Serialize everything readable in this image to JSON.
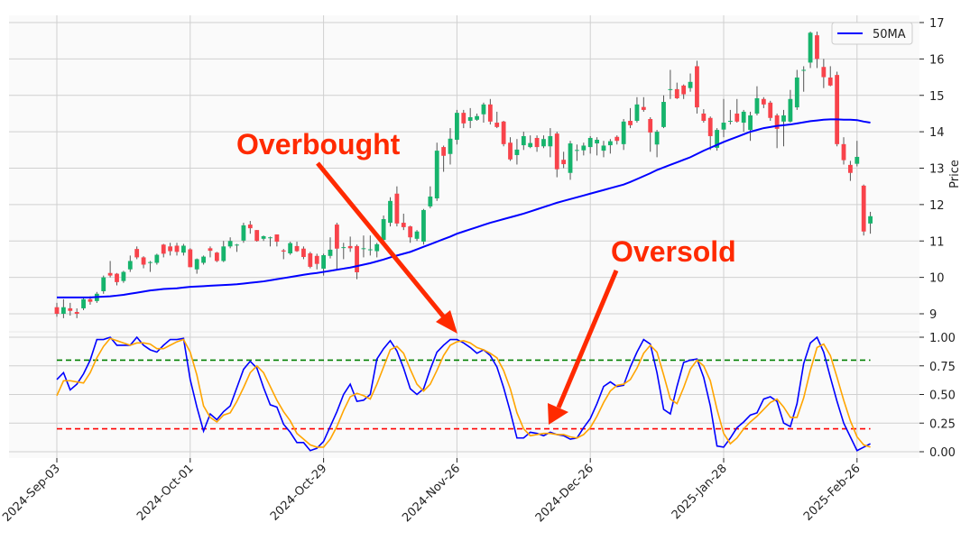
{
  "chart_data": [
    {
      "type": "candlestick",
      "panel": "price",
      "ylabel": "Price",
      "ylim": [
        8.5,
        17.2
      ],
      "yticks": [
        "9",
        "10",
        "11",
        "12",
        "13",
        "14",
        "15",
        "16",
        "17"
      ],
      "ytick_values": [
        9,
        10,
        11,
        12,
        13,
        14,
        15,
        16,
        17
      ],
      "grid": true,
      "legend": {
        "placement": "top-right",
        "entries": [
          {
            "name": "50MA",
            "color": "#0000ff"
          }
        ]
      },
      "colors": {
        "up": "#16b46c",
        "down": "#f8434b",
        "wick": "#555555",
        "ma": "#0000ff",
        "background": "#fafafa",
        "grid": "#d0d0d0"
      },
      "x_ticks": [
        {
          "label": "2024-Sep-03",
          "index": 0
        },
        {
          "label": "2024-Oct-01",
          "index": 20
        },
        {
          "label": "2024-Oct-29",
          "index": 40
        },
        {
          "label": "2024-Nov-26",
          "index": 60
        },
        {
          "label": "2024-Dec-26",
          "index": 80
        },
        {
          "label": "2025-Jan-28",
          "index": 100
        },
        {
          "label": "2025-Feb-26",
          "index": 120
        }
      ],
      "ohlc": [
        [
          9.18,
          9.3,
          8.92,
          9.0
        ],
        [
          9.0,
          9.4,
          8.88,
          9.18
        ],
        [
          9.15,
          9.3,
          8.95,
          9.08
        ],
        [
          9.05,
          9.15,
          8.88,
          9.0
        ],
        [
          9.15,
          9.45,
          9.1,
          9.4
        ],
        [
          9.4,
          9.48,
          9.25,
          9.33
        ],
        [
          9.35,
          9.6,
          9.3,
          9.55
        ],
        [
          9.62,
          10.05,
          9.55,
          10.0
        ],
        [
          10.12,
          10.45,
          10.0,
          10.05
        ],
        [
          10.1,
          10.12,
          9.78,
          9.87
        ],
        [
          9.9,
          10.18,
          9.85,
          10.15
        ],
        [
          10.22,
          10.6,
          10.15,
          10.45
        ],
        [
          10.78,
          10.85,
          10.5,
          10.55
        ],
        [
          10.55,
          10.58,
          10.25,
          10.35
        ],
        [
          10.42,
          10.45,
          10.15,
          10.42
        ],
        [
          10.4,
          10.65,
          10.35,
          10.62
        ],
        [
          10.9,
          10.92,
          10.55,
          10.65
        ],
        [
          10.85,
          10.95,
          10.6,
          10.72
        ],
        [
          10.87,
          10.95,
          10.6,
          10.7
        ],
        [
          10.68,
          10.92,
          10.6,
          10.87
        ],
        [
          10.77,
          10.8,
          10.28,
          10.28
        ],
        [
          10.22,
          10.52,
          10.1,
          10.5
        ],
        [
          10.4,
          10.6,
          10.35,
          10.57
        ],
        [
          10.8,
          10.85,
          10.55,
          10.73
        ],
        [
          10.68,
          10.7,
          10.42,
          10.45
        ],
        [
          10.45,
          11.0,
          10.42,
          10.85
        ],
        [
          10.85,
          11.1,
          10.8,
          11.0
        ],
        [
          10.9,
          10.92,
          10.7,
          10.9
        ],
        [
          11.01,
          11.5,
          10.95,
          11.43
        ],
        [
          11.45,
          11.55,
          11.2,
          11.35
        ],
        [
          11.3,
          11.3,
          10.98,
          11.0
        ],
        [
          11.06,
          11.15,
          11.0,
          11.13
        ],
        [
          11.1,
          11.12,
          10.85,
          11.1
        ],
        [
          11.18,
          11.18,
          10.85,
          10.98
        ],
        [
          10.74,
          10.78,
          10.5,
          10.71
        ],
        [
          10.66,
          10.98,
          10.62,
          10.94
        ],
        [
          10.86,
          10.98,
          10.7,
          10.72
        ],
        [
          10.79,
          10.85,
          10.5,
          10.56
        ],
        [
          10.66,
          10.7,
          10.25,
          10.29
        ],
        [
          10.59,
          10.65,
          10.22,
          10.37
        ],
        [
          10.24,
          10.65,
          10.05,
          10.61
        ],
        [
          10.59,
          11.1,
          10.52,
          10.76
        ],
        [
          11.45,
          11.5,
          10.2,
          10.79
        ],
        [
          10.83,
          10.95,
          10.5,
          10.83
        ],
        [
          10.86,
          11.12,
          10.7,
          10.8
        ],
        [
          10.86,
          10.9,
          9.95,
          10.14
        ],
        [
          10.8,
          11.15,
          10.55,
          10.8
        ],
        [
          10.77,
          11.15,
          10.6,
          10.77
        ],
        [
          10.72,
          10.95,
          10.55,
          10.91
        ],
        [
          11.03,
          11.7,
          11.0,
          11.6
        ],
        [
          11.5,
          12.2,
          11.4,
          12.1
        ],
        [
          12.3,
          12.5,
          11.4,
          11.48
        ],
        [
          11.5,
          11.75,
          11.3,
          11.38
        ],
        [
          11.4,
          11.42,
          10.95,
          11.1
        ],
        [
          11.06,
          11.3,
          11.0,
          11.26
        ],
        [
          10.98,
          11.88,
          10.9,
          11.85
        ],
        [
          11.95,
          12.5,
          11.9,
          12.22
        ],
        [
          12.17,
          13.7,
          12.1,
          13.48
        ],
        [
          13.58,
          13.62,
          12.9,
          13.34
        ],
        [
          13.39,
          14.1,
          13.1,
          13.81
        ],
        [
          13.78,
          14.6,
          13.65,
          14.52
        ],
        [
          14.52,
          14.6,
          14.1,
          14.23
        ],
        [
          14.3,
          14.65,
          14.1,
          14.4
        ],
        [
          14.33,
          14.5,
          14.3,
          14.43
        ],
        [
          14.48,
          14.8,
          14.25,
          14.75
        ],
        [
          14.75,
          14.9,
          14.2,
          14.28
        ],
        [
          14.25,
          14.55,
          14.1,
          14.13
        ],
        [
          14.28,
          14.3,
          13.6,
          13.66
        ],
        [
          13.7,
          13.85,
          13.2,
          13.24
        ],
        [
          13.36,
          13.8,
          13.1,
          13.51
        ],
        [
          13.63,
          14.0,
          13.5,
          13.88
        ],
        [
          13.58,
          13.9,
          13.55,
          13.69
        ],
        [
          13.83,
          13.9,
          13.45,
          13.58
        ],
        [
          13.6,
          13.9,
          13.55,
          13.8
        ],
        [
          13.6,
          14.1,
          13.3,
          13.88
        ],
        [
          13.95,
          14.0,
          12.75,
          12.97
        ],
        [
          13.23,
          13.45,
          13.0,
          13.11
        ],
        [
          12.87,
          13.75,
          12.68,
          13.68
        ],
        [
          13.5,
          13.65,
          13.2,
          13.5
        ],
        [
          13.49,
          13.7,
          13.35,
          13.62
        ],
        [
          13.58,
          13.88,
          13.4,
          13.83
        ],
        [
          13.68,
          13.85,
          13.35,
          13.78
        ],
        [
          13.48,
          13.75,
          13.3,
          13.62
        ],
        [
          13.63,
          13.8,
          13.4,
          13.74
        ],
        [
          13.86,
          13.9,
          13.65,
          13.75
        ],
        [
          13.66,
          14.35,
          13.5,
          14.28
        ],
        [
          14.3,
          14.65,
          14.1,
          14.18
        ],
        [
          14.3,
          14.95,
          14.25,
          14.75
        ],
        [
          14.68,
          14.95,
          14.55,
          14.6
        ],
        [
          14.35,
          14.4,
          13.45,
          13.98
        ],
        [
          13.65,
          14.05,
          13.3,
          14.0
        ],
        [
          14.13,
          15.0,
          14.1,
          14.82
        ],
        [
          15.17,
          15.7,
          14.9,
          15.17
        ],
        [
          15.17,
          15.35,
          14.9,
          14.92
        ],
        [
          15.27,
          15.3,
          14.9,
          15.03
        ],
        [
          15.2,
          15.6,
          15.1,
          15.37
        ],
        [
          15.8,
          15.95,
          14.5,
          14.67
        ],
        [
          14.5,
          14.62,
          14.25,
          14.3
        ],
        [
          14.38,
          14.42,
          13.5,
          13.88
        ],
        [
          13.56,
          14.1,
          13.48,
          14.05
        ],
        [
          14.06,
          14.9,
          13.85,
          14.25
        ],
        [
          14.3,
          14.6,
          14.2,
          14.3
        ],
        [
          14.5,
          14.9,
          14.25,
          14.28
        ],
        [
          14.25,
          14.6,
          14.0,
          14.55
        ],
        [
          14.05,
          14.55,
          13.75,
          14.45
        ],
        [
          14.5,
          15.25,
          14.45,
          14.92
        ],
        [
          14.9,
          14.95,
          14.65,
          14.75
        ],
        [
          14.8,
          14.85,
          14.3,
          14.38
        ],
        [
          14.45,
          14.5,
          13.55,
          14.08
        ],
        [
          14.28,
          14.6,
          13.6,
          14.45
        ],
        [
          14.28,
          15.15,
          14.25,
          14.9
        ],
        [
          14.67,
          15.7,
          14.6,
          15.49
        ],
        [
          15.7,
          15.8,
          15.1,
          15.7
        ],
        [
          15.9,
          16.75,
          15.75,
          16.72
        ],
        [
          16.65,
          16.75,
          15.75,
          16.0
        ],
        [
          15.78,
          16.0,
          15.2,
          15.5
        ],
        [
          15.49,
          15.8,
          15.25,
          15.27
        ],
        [
          15.56,
          15.65,
          13.6,
          13.66
        ],
        [
          13.66,
          13.85,
          13.1,
          13.22
        ],
        [
          13.09,
          13.2,
          12.65,
          12.87
        ],
        [
          13.12,
          13.75,
          13.05,
          13.31
        ],
        [
          12.52,
          12.55,
          11.15,
          11.26
        ],
        [
          11.48,
          11.8,
          11.2,
          11.68
        ]
      ],
      "ma50": [
        9.45,
        9.45,
        9.45,
        9.45,
        9.45,
        9.45,
        9.46,
        9.47,
        9.48,
        9.5,
        9.52,
        9.55,
        9.58,
        9.61,
        9.64,
        9.66,
        9.68,
        9.69,
        9.7,
        9.72,
        9.74,
        9.75,
        9.76,
        9.77,
        9.78,
        9.79,
        9.8,
        9.81,
        9.83,
        9.85,
        9.87,
        9.89,
        9.92,
        9.95,
        9.98,
        10.01,
        10.04,
        10.07,
        10.1,
        10.12,
        10.15,
        10.18,
        10.21,
        10.24,
        10.27,
        10.31,
        10.35,
        10.39,
        10.44,
        10.49,
        10.55,
        10.6,
        10.65,
        10.7,
        10.77,
        10.84,
        10.91,
        10.98,
        11.05,
        11.12,
        11.2,
        11.26,
        11.32,
        11.38,
        11.44,
        11.5,
        11.55,
        11.6,
        11.65,
        11.7,
        11.75,
        11.81,
        11.87,
        11.93,
        11.99,
        12.05,
        12.1,
        12.15,
        12.2,
        12.25,
        12.3,
        12.35,
        12.4,
        12.45,
        12.5,
        12.55,
        12.62,
        12.7,
        12.78,
        12.86,
        12.95,
        13.02,
        13.09,
        13.16,
        13.23,
        13.3,
        13.39,
        13.48,
        13.56,
        13.64,
        13.72,
        13.79,
        13.86,
        13.93,
        14.0,
        14.05,
        14.1,
        14.13,
        14.16,
        14.18,
        14.2,
        14.23,
        14.26,
        14.29,
        14.31,
        14.33,
        14.34,
        14.34,
        14.33,
        14.33,
        14.32,
        14.28,
        14.25
      ],
      "annotations": [
        {
          "text": "Overbought",
          "color": "#ff2a00"
        },
        {
          "text": "Oversold",
          "color": "#ff2a00"
        }
      ]
    },
    {
      "type": "line",
      "panel": "stochastic",
      "ylim": [
        -0.05,
        1.05
      ],
      "yticks": [
        "0.00",
        "0.25",
        "0.50",
        "0.75",
        "1.00"
      ],
      "ytick_values": [
        0,
        0.25,
        0.5,
        0.75,
        1.0
      ],
      "grid": true,
      "hlines": [
        {
          "value": 0.8,
          "color": "#008000",
          "style": "dashed"
        },
        {
          "value": 0.2,
          "color": "#ff0000",
          "style": "dashed"
        }
      ],
      "series": [
        {
          "color": "#0000ff",
          "values": [
            0.63,
            0.69,
            0.54,
            0.59,
            0.68,
            0.8,
            0.98,
            0.98,
            1.0,
            0.93,
            0.93,
            0.93,
            1.0,
            0.93,
            0.89,
            0.87,
            0.93,
            0.98,
            0.98,
            0.99,
            0.63,
            0.39,
            0.18,
            0.33,
            0.28,
            0.35,
            0.4,
            0.56,
            0.72,
            0.79,
            0.73,
            0.56,
            0.41,
            0.39,
            0.24,
            0.17,
            0.08,
            0.08,
            0.01,
            0.03,
            0.09,
            0.22,
            0.35,
            0.5,
            0.59,
            0.44,
            0.45,
            0.5,
            0.81,
            0.9,
            0.97,
            0.88,
            0.73,
            0.55,
            0.5,
            0.55,
            0.72,
            0.87,
            0.93,
            0.98,
            0.98,
            0.95,
            0.91,
            0.86,
            0.89,
            0.84,
            0.74,
            0.56,
            0.35,
            0.12,
            0.12,
            0.17,
            0.16,
            0.14,
            0.17,
            0.15,
            0.14,
            0.11,
            0.12,
            0.21,
            0.29,
            0.42,
            0.57,
            0.61,
            0.57,
            0.58,
            0.74,
            0.87,
            0.98,
            0.94,
            0.69,
            0.37,
            0.33,
            0.57,
            0.78,
            0.8,
            0.81,
            0.65,
            0.4,
            0.05,
            0.04,
            0.12,
            0.21,
            0.26,
            0.32,
            0.34,
            0.46,
            0.48,
            0.44,
            0.25,
            0.22,
            0.42,
            0.77,
            0.95,
            1.0,
            0.87,
            0.65,
            0.44,
            0.25,
            0.13,
            0.01,
            0.04,
            0.07
          ]
        },
        {
          "color": "#ffa500",
          "values": [
            0.49,
            0.62,
            0.62,
            0.61,
            0.6,
            0.69,
            0.82,
            0.92,
            0.99,
            0.97,
            0.95,
            0.93,
            0.95,
            0.95,
            0.94,
            0.9,
            0.9,
            0.93,
            0.96,
            0.98,
            0.87,
            0.67,
            0.4,
            0.3,
            0.26,
            0.32,
            0.34,
            0.44,
            0.56,
            0.69,
            0.75,
            0.69,
            0.57,
            0.45,
            0.35,
            0.27,
            0.16,
            0.11,
            0.06,
            0.04,
            0.04,
            0.11,
            0.22,
            0.36,
            0.48,
            0.51,
            0.49,
            0.46,
            0.59,
            0.74,
            0.89,
            0.92,
            0.86,
            0.72,
            0.59,
            0.53,
            0.59,
            0.71,
            0.84,
            0.93,
            0.96,
            0.97,
            0.95,
            0.91,
            0.89,
            0.86,
            0.82,
            0.71,
            0.55,
            0.34,
            0.2,
            0.14,
            0.15,
            0.16,
            0.16,
            0.15,
            0.15,
            0.13,
            0.12,
            0.15,
            0.21,
            0.31,
            0.43,
            0.53,
            0.58,
            0.59,
            0.63,
            0.73,
            0.86,
            0.93,
            0.87,
            0.67,
            0.46,
            0.42,
            0.56,
            0.72,
            0.8,
            0.75,
            0.62,
            0.37,
            0.16,
            0.07,
            0.12,
            0.2,
            0.26,
            0.31,
            0.37,
            0.43,
            0.46,
            0.39,
            0.3,
            0.3,
            0.47,
            0.71,
            0.91,
            0.94,
            0.84,
            0.65,
            0.45,
            0.27,
            0.13,
            0.06,
            0.04
          ]
        }
      ]
    }
  ]
}
